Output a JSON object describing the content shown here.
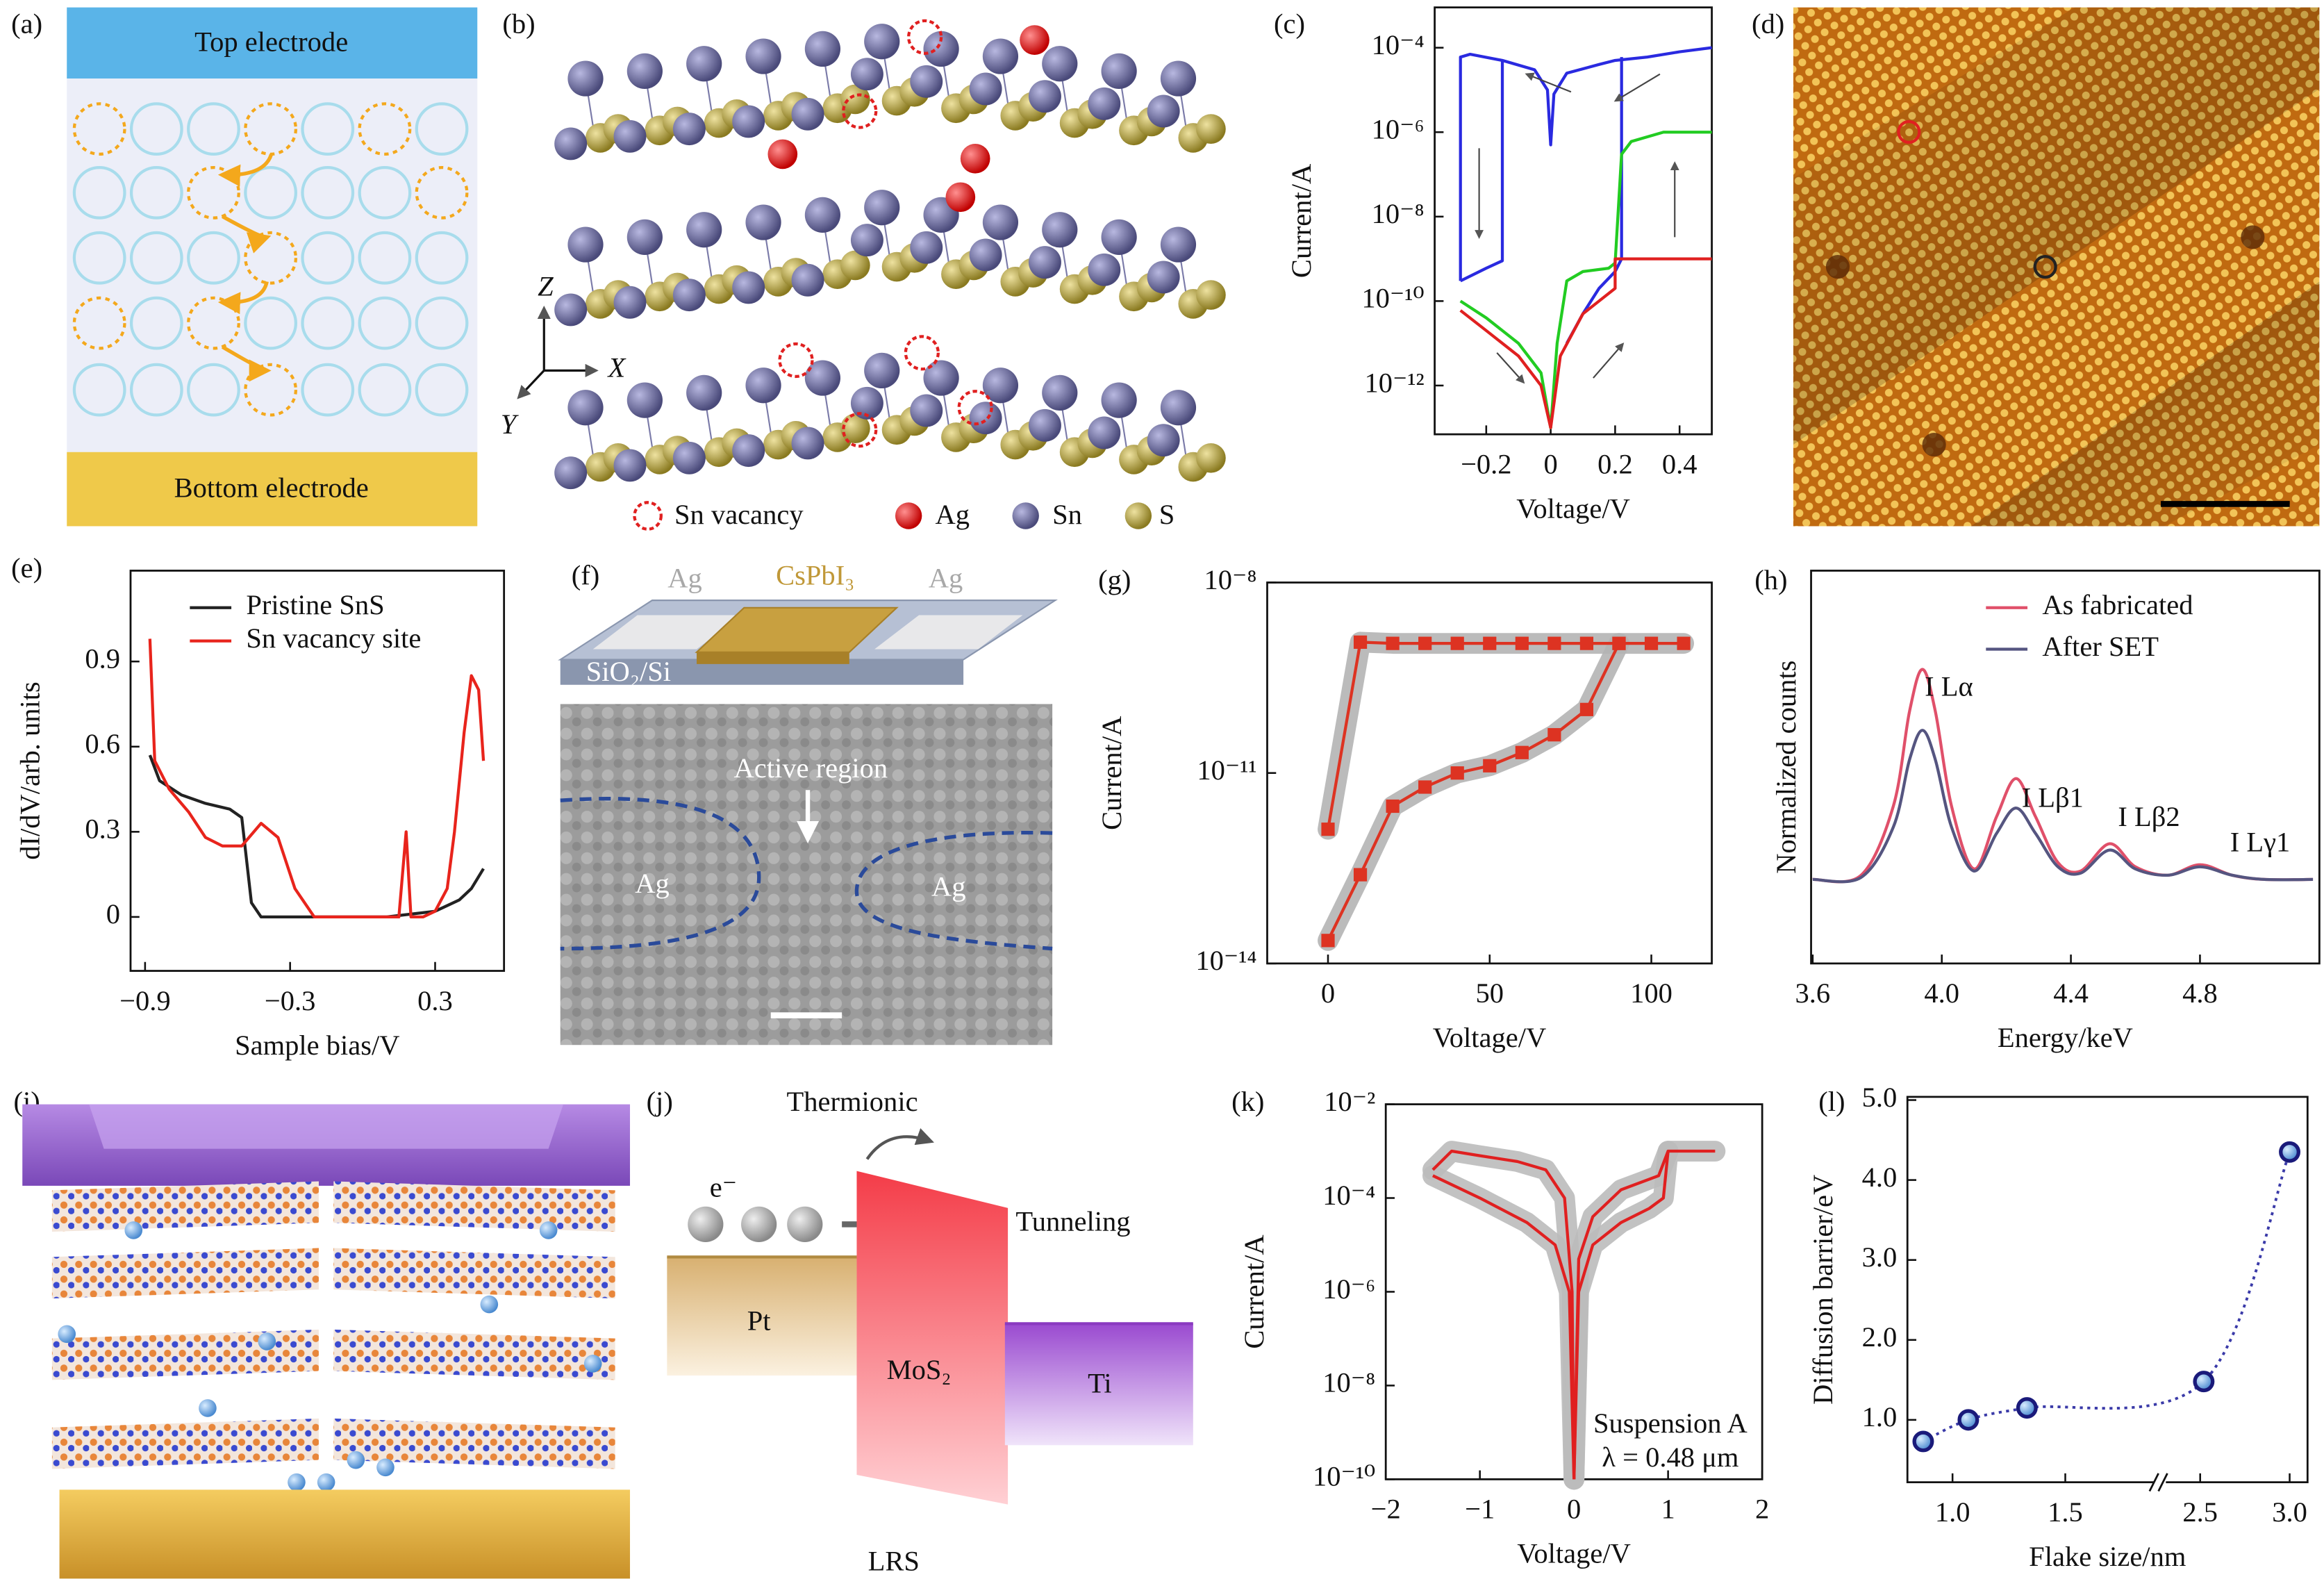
{
  "panels": {
    "a": {
      "label": "(a)",
      "top": "Top electrode",
      "bottom": "Bottom electrode"
    },
    "b": {
      "label": "(b)",
      "axis_labels": [
        "Z",
        "X",
        "Y"
      ],
      "legend": [
        "Sn vacancy",
        "Ag",
        "Sn",
        "S"
      ]
    },
    "d": {
      "label": "(d)"
    },
    "f": {
      "label": "(f)",
      "schematic": [
        "Ag",
        "CsPbI₃",
        "Ag"
      ],
      "substrate": "SiO₂/Si",
      "region": "Active region",
      "electrodes": [
        "Ag",
        "Ag"
      ]
    },
    "i": {
      "label": "(i)"
    },
    "j": {
      "label": "(j)",
      "thermionic": "Thermionic",
      "electron": "e⁻",
      "tunneling": "Tunneling",
      "metal1": "Pt",
      "layer": "MoS₂",
      "metal2": "Ti",
      "state": "LRS"
    }
  },
  "chart_data": [
    {
      "panel_label": "(c)",
      "type": "line",
      "xlabel": "Voltage/V",
      "ylabel": "Current/A",
      "log_y": true,
      "xlim": [
        -0.36,
        0.5
      ],
      "ylim": [
        7e-14,
        0.0009
      ],
      "xticks": [
        {
          "value": -0.2,
          "label": "−0.2"
        },
        0,
        0.2,
        0.4
      ],
      "yticks": [
        {
          "value": 1e-12,
          "label": "10⁻¹²"
        },
        {
          "value": 1e-10,
          "label": "10⁻¹⁰"
        },
        {
          "value": 1e-08,
          "label": "10⁻⁸"
        },
        {
          "value": 1e-06,
          "label": "10⁻⁶"
        },
        {
          "value": 0.0001,
          "label": "10⁻⁴"
        }
      ],
      "series": [
        {
          "color": "#2a2ae0",
          "x": [
            -0.28,
            -0.28,
            -0.25,
            -0.15,
            -0.05,
            -0.01,
            0,
            0.01,
            0.05,
            0.15,
            0.2,
            0.3,
            0.4,
            0.5
          ],
          "values": [
            3e-10,
            6e-05,
            7e-05,
            5e-05,
            3e-05,
            1e-05,
            5e-07,
            8e-06,
            2.5e-05,
            4e-05,
            5e-05,
            6e-05,
            8e-05,
            0.0001
          ]
        },
        {
          "color": "#2a2ae0",
          "x": [
            -0.28,
            -0.2,
            -0.15,
            -0.15
          ],
          "values": [
            3e-10,
            6e-10,
            9e-10,
            5e-05
          ]
        },
        {
          "color": "#2a2ae0",
          "x": [
            0.05,
            0.1,
            0.15,
            0.2,
            0.22,
            0.22
          ],
          "values": [
            1e-11,
            5e-11,
            2e-10,
            5e-10,
            1e-09,
            6e-05
          ]
        },
        {
          "color": "#22cc22",
          "x": [
            -0.28,
            -0.2,
            -0.1,
            -0.03,
            0,
            0.02,
            0.05,
            0.1,
            0.18,
            0.2,
            0.22,
            0.25,
            0.35,
            0.5
          ],
          "values": [
            1e-10,
            4e-11,
            1e-11,
            2e-12,
            1e-13,
            1e-11,
            3e-10,
            5e-10,
            6e-10,
            8e-10,
            3e-07,
            6e-07,
            1e-06,
            1e-06
          ]
        },
        {
          "color": "#e02020",
          "x": [
            -0.28,
            -0.2,
            -0.1,
            -0.03,
            0,
            0.03,
            0.1,
            0.15,
            0.2,
            0.2,
            0.5
          ],
          "values": [
            6e-11,
            2e-11,
            5e-12,
            1e-12,
            1e-13,
            5e-12,
            5e-11,
            1e-10,
            2e-10,
            1e-09,
            1e-09
          ]
        }
      ]
    },
    {
      "panel_label": "(e)",
      "type": "line",
      "xlabel": "Sample bias/V",
      "ylabel": "dI/dV/arb. units",
      "legend": "upper left",
      "xlim": [
        -0.96,
        0.585
      ],
      "ylim": [
        -0.19,
        1.22
      ],
      "xticks": [
        {
          "value": -0.9,
          "label": "−0.9"
        },
        {
          "value": -0.3,
          "label": "−0.3"
        },
        0.3
      ],
      "yticks": [
        0,
        0.3,
        0.6,
        0.9
      ],
      "series": [
        {
          "name": "Pristine SnS",
          "color": "#222222",
          "x": [
            -0.88,
            -0.84,
            -0.75,
            -0.65,
            -0.55,
            -0.5,
            -0.46,
            -0.42,
            -0.3,
            -0.1,
            0.1,
            0.3,
            0.4,
            0.45,
            0.5
          ],
          "values": [
            0.57,
            0.48,
            0.43,
            0.4,
            0.38,
            0.35,
            0.05,
            0,
            0,
            0,
            0,
            0.02,
            0.06,
            0.1,
            0.17
          ]
        },
        {
          "name": "Sn vacancy site",
          "color": "#e8241c",
          "x": [
            -0.88,
            -0.86,
            -0.8,
            -0.72,
            -0.65,
            -0.58,
            -0.5,
            -0.42,
            -0.35,
            -0.28,
            -0.2,
            0,
            0.15,
            0.18,
            0.2,
            0.25,
            0.3,
            0.35,
            0.38,
            0.42,
            0.45,
            0.48,
            0.5
          ],
          "values": [
            0.98,
            0.55,
            0.45,
            0.37,
            0.28,
            0.25,
            0.25,
            0.33,
            0.28,
            0.1,
            0,
            0,
            0,
            0.3,
            0,
            0,
            0.02,
            0.1,
            0.3,
            0.65,
            0.85,
            0.8,
            0.55
          ]
        }
      ]
    },
    {
      "panel_label": "(g)",
      "type": "line",
      "xlabel": "Voltage/V",
      "ylabel": "Current/A",
      "log_y": true,
      "shadow_color": "#b4b4b4",
      "xlim": [
        -18.8,
        118.7
      ],
      "ylim": [
        1e-14,
        1e-08
      ],
      "xticks": [
        0,
        50,
        100
      ],
      "yticks": [
        {
          "value": 1e-14,
          "label": "10⁻¹⁴"
        },
        {
          "value": 1e-11,
          "label": "10⁻¹¹"
        },
        {
          "value": 1e-08,
          "label": "10⁻⁸"
        }
      ],
      "series": [
        {
          "color": "#dd3322",
          "marker": "square",
          "x": [
            0,
            10,
            20,
            30,
            40,
            50,
            60,
            70,
            80,
            90,
            100,
            110
          ],
          "values": [
            1.3e-12,
            1.15e-09,
            1.1e-09,
            1.1e-09,
            1.1e-09,
            1.1e-09,
            1.1e-09,
            1.1e-09,
            1.1e-09,
            1.1e-09,
            1.1e-09,
            1.1e-09
          ]
        },
        {
          "color": "#dd3322",
          "marker": "square",
          "x": [
            0,
            10,
            20,
            30,
            40,
            50,
            60,
            70,
            80,
            90
          ],
          "values": [
            2.3e-14,
            2.5e-13,
            3e-12,
            6e-12,
            1e-11,
            1.3e-11,
            2.1e-11,
            4e-11,
            1e-10,
            1.1e-09
          ]
        }
      ]
    },
    {
      "panel_label": "(h)",
      "type": "line",
      "xlabel": "Energy/keV",
      "ylabel": "Normalized counts",
      "legend": "upper right",
      "smooth": true,
      "xlim": [
        3.595,
        5.17
      ],
      "ylim": [
        -0.4,
        1.47
      ],
      "xticks": [
        3.6,
        {
          "value": 4,
          "label": "4.0"
        },
        4.4,
        4.8
      ],
      "annotations": [
        "I Lα",
        "I Lβ1",
        "I Lβ2",
        "I Lγ1"
      ],
      "x": [
        3.6,
        3.75,
        3.85,
        3.9,
        3.94,
        3.98,
        4.03,
        4.1,
        4.17,
        4.23,
        4.29,
        4.36,
        4.43,
        4.52,
        4.6,
        4.7,
        4.8,
        4.9,
        5.0,
        5.15
      ],
      "series": [
        {
          "name": "As fabricated",
          "color": "#e0506a",
          "values": [
            0,
            0.02,
            0.35,
            0.8,
            1.0,
            0.8,
            0.35,
            0.05,
            0.3,
            0.48,
            0.3,
            0.08,
            0.04,
            0.17,
            0.06,
            0.02,
            0.07,
            0.02,
            0,
            0
          ]
        },
        {
          "name": "After SET",
          "color": "#555580",
          "values": [
            0,
            0.01,
            0.25,
            0.57,
            0.71,
            0.57,
            0.25,
            0.04,
            0.22,
            0.34,
            0.22,
            0.06,
            0.03,
            0.14,
            0.05,
            0.02,
            0.06,
            0.02,
            0,
            0
          ]
        }
      ]
    },
    {
      "panel_label": "(k)",
      "type": "line",
      "xlabel": "Voltage/V",
      "ylabel": "Current/A",
      "log_y": true,
      "shadow_color": "#bbbbbb",
      "xlim": [
        -2,
        2
      ],
      "ylim": [
        1e-10,
        0.01
      ],
      "xticks": [
        {
          "value": -2,
          "label": "−2"
        },
        {
          "value": -1,
          "label": "−1"
        },
        0,
        1,
        2
      ],
      "yticks": [
        {
          "value": 1e-10,
          "label": "10⁻¹⁰"
        },
        {
          "value": 1e-08,
          "label": "10⁻⁸"
        },
        {
          "value": 1e-06,
          "label": "10⁻⁶"
        },
        {
          "value": 0.0001,
          "label": "10⁻⁴"
        },
        {
          "value": 0.01,
          "label": "10⁻²"
        }
      ],
      "annotations": [
        "Suspension A",
        "λ = 0.48 μm"
      ],
      "series": [
        {
          "color": "#e02020",
          "x": [
            -1.5,
            -1.3,
            -1.0,
            -0.6,
            -0.3,
            -0.1,
            -0.02,
            0
          ],
          "values": [
            0.0004,
            0.001,
            0.0008,
            0.0006,
            0.0004,
            0.0001,
            1e-06,
            1e-10
          ]
        },
        {
          "color": "#e02020",
          "x": [
            -1.5,
            -1.0,
            -0.5,
            -0.2,
            -0.05,
            0
          ],
          "values": [
            0.0003,
            0.0001,
            3e-05,
            1e-05,
            1e-06,
            1e-10
          ]
        },
        {
          "color": "#e02020",
          "x": [
            0,
            0.05,
            0.2,
            0.5,
            0.8,
            0.95,
            1.0,
            1.5
          ],
          "values": [
            1e-10,
            1e-06,
            1e-05,
            3e-05,
            6e-05,
            0.0001,
            0.001,
            0.001
          ]
        },
        {
          "color": "#e02020",
          "x": [
            0,
            0.05,
            0.2,
            0.5,
            0.9,
            1.0
          ],
          "values": [
            1e-10,
            5e-06,
            4e-05,
            0.00015,
            0.0003,
            0.001
          ]
        }
      ]
    },
    {
      "panel_label": "(l)",
      "type": "line",
      "xlabel": "Flake size/nm",
      "ylabel": "Diffusion barrier/eV",
      "smooth": true,
      "line_style": "dotted",
      "xlim": [
        0.8,
        3.1
      ],
      "x_break": [
        1.9,
        2.3
      ],
      "ylim": [
        0.22,
        5.04
      ],
      "xticks": [
        {
          "value": 1,
          "label": "1.0"
        },
        1.5,
        2.5,
        {
          "value": 3,
          "label": "3.0"
        }
      ],
      "yticks": [
        {
          "value": 1,
          "label": "1.0"
        },
        {
          "value": 2,
          "label": "2.0"
        },
        {
          "value": 3,
          "label": "3.0"
        },
        {
          "value": 4,
          "label": "4.0"
        },
        {
          "value": 5,
          "label": "5.0"
        }
      ],
      "series": [
        {
          "color": "#3a3aa8",
          "marker": "circle",
          "marker_color": "#1a1a7a",
          "x": [
            0.87,
            1.07,
            1.33,
            2.52,
            3.0
          ],
          "values": [
            0.73,
            1.0,
            1.15,
            1.48,
            4.35
          ]
        }
      ]
    }
  ]
}
